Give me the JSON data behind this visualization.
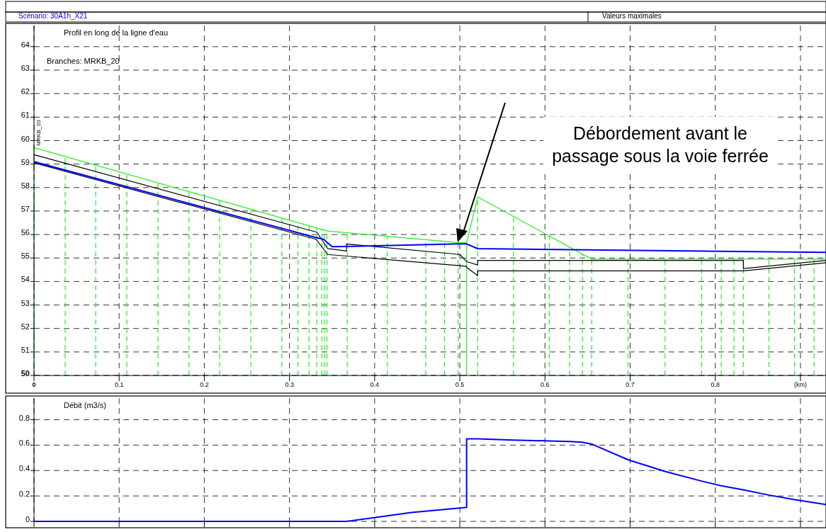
{
  "chart_data": [
    {
      "type": "line",
      "title": "Profil en long de la ligne d'eau",
      "subtitle": "Branches: MRKB_20",
      "annotations": [
        "Scénario: 30A1h_X21",
        "Valeurs maximales",
        "MRKB_20",
        "Débordement avant le\npassage sous la voie ferrée"
      ],
      "series": [
        {
          "color": "#22ee22",
          "x": [
            0,
            0.33,
            0.345,
            0.5,
            0.508,
            0.521,
            0.655,
            0.93
          ],
          "values": [
            59.7,
            56.3,
            56.15,
            55.65,
            55.65,
            57.6,
            54.95,
            54.95
          ]
        },
        {
          "color": "#000000",
          "x": [
            0,
            0.332,
            0.345,
            0.367,
            0.367,
            0.5,
            0.508,
            0.521,
            0.521,
            0.833,
            0.833,
            0.93
          ],
          "values": [
            59.4,
            56.1,
            55.4,
            55.3,
            55.6,
            55.15,
            54.85,
            54.7,
            54.9,
            54.9,
            54.55,
            54.9
          ]
        },
        {
          "color": "#000000",
          "x": [
            0,
            0.331,
            0.345,
            0.508,
            0.508,
            0.521,
            0.521,
            0.833,
            0.93
          ],
          "values": [
            59.05,
            55.8,
            55.15,
            54.65,
            54.6,
            54.25,
            54.45,
            54.45,
            54.8
          ]
        },
        {
          "color": "#0000ff",
          "x": [
            0,
            0.33,
            0.34,
            0.35,
            0.5,
            0.508,
            0.521,
            0.93
          ],
          "values": [
            59.1,
            55.88,
            55.8,
            55.48,
            55.6,
            55.6,
            55.4,
            55.24
          ]
        }
      ],
      "xlim": [
        0,
        0.93
      ],
      "ylim": [
        50,
        64.9
      ],
      "xticks": [
        0,
        0.1,
        0.2,
        0.3,
        0.4,
        0.5,
        0.6,
        0.7,
        0.8,
        {
          "value": 0.9,
          "label": "(km)"
        }
      ],
      "yticks": [
        50,
        51,
        52,
        53,
        54,
        55,
        56,
        57,
        58,
        59,
        60,
        61,
        62,
        63,
        64
      ],
      "grid": true,
      "marker": "none",
      "line_style": "solid",
      "ref_lines": [
        {
          "axis": "x",
          "value": 0,
          "color": "#22ee22",
          "line_style": "dashed"
        },
        {
          "axis": "x",
          "value": 0.0366,
          "color": "#22ee22",
          "line_style": "dashed"
        },
        {
          "axis": "x",
          "value": 0.0725,
          "color": "#22ee22",
          "line_style": "dashed"
        },
        {
          "axis": "x",
          "value": 0.109,
          "color": "#22ee22",
          "line_style": "dashed"
        },
        {
          "axis": "x",
          "value": 0.1456,
          "color": "#22ee22",
          "line_style": "dashed"
        },
        {
          "axis": "x",
          "value": 0.182,
          "color": "#22ee22",
          "line_style": "dashed"
        },
        {
          "axis": "x",
          "value": 0.218,
          "color": "#22ee22",
          "line_style": "dashed"
        },
        {
          "axis": "x",
          "value": 0.2546,
          "color": "#22ee22",
          "line_style": "dashed"
        },
        {
          "axis": "x",
          "value": 0.291,
          "color": "#22ee22",
          "line_style": "dashed"
        },
        {
          "axis": "x",
          "value": 0.31,
          "color": "#22ee22",
          "line_style": "dashed"
        },
        {
          "axis": "x",
          "value": 0.323,
          "color": "#22ee22",
          "line_style": "dashed"
        },
        {
          "axis": "x",
          "value": 0.332,
          "color": "#22ee22",
          "line_style": "dashed"
        },
        {
          "axis": "x",
          "value": 0.338,
          "color": "#22ee22",
          "line_style": "dashed"
        },
        {
          "axis": "x",
          "value": 0.341,
          "color": "#22ee22",
          "line_style": "dashed"
        },
        {
          "axis": "x",
          "value": 0.344,
          "color": "#22ee22",
          "line_style": "dashed"
        },
        {
          "axis": "x",
          "value": 0.3678,
          "color": "#22ee22",
          "line_style": "dashed"
        },
        {
          "axis": "x",
          "value": 0.415,
          "color": "#22ee22",
          "line_style": "dashed"
        },
        {
          "axis": "x",
          "value": 0.46,
          "color": "#22ee22",
          "line_style": "dashed"
        },
        {
          "axis": "x",
          "value": 0.482,
          "color": "#22ee22",
          "line_style": "dashed"
        },
        {
          "axis": "x",
          "value": 0.498,
          "color": "#22ee22",
          "line_style": "dashed"
        },
        {
          "axis": "x",
          "value": 0.508,
          "color": "#22ee22",
          "line_style": "solid"
        },
        {
          "axis": "x",
          "value": 0.521,
          "color": "#22ee22",
          "line_style": "dashed"
        },
        {
          "axis": "x",
          "value": 0.563,
          "color": "#22ee22",
          "line_style": "dashed"
        },
        {
          "axis": "x",
          "value": 0.605,
          "color": "#22ee22",
          "line_style": "dashed"
        },
        {
          "axis": "x",
          "value": 0.629,
          "color": "#22ee22",
          "line_style": "dashed"
        },
        {
          "axis": "x",
          "value": 0.644,
          "color": "#22ee22",
          "line_style": "dashed"
        },
        {
          "axis": "x",
          "value": 0.655,
          "color": "#22ee22",
          "line_style": "dashed"
        },
        {
          "axis": "x",
          "value": 0.6975,
          "color": "#22ee22",
          "line_style": "dashed"
        },
        {
          "axis": "x",
          "value": 0.741,
          "color": "#22ee22",
          "line_style": "dashed"
        },
        {
          "axis": "x",
          "value": 0.784,
          "color": "#22ee22",
          "line_style": "dashed"
        },
        {
          "axis": "x",
          "value": 0.807,
          "color": "#22ee22",
          "line_style": "dashed"
        },
        {
          "axis": "x",
          "value": 0.822,
          "color": "#22ee22",
          "line_style": "dashed"
        },
        {
          "axis": "x",
          "value": 0.833,
          "color": "#22ee22",
          "line_style": "dashed"
        },
        {
          "axis": "x",
          "value": 0.863,
          "color": "#22ee22",
          "line_style": "dashed"
        },
        {
          "axis": "x",
          "value": 0.893,
          "color": "#22ee22",
          "line_style": "dashed"
        },
        {
          "axis": "x",
          "value": 0.916,
          "color": "#22ee22",
          "line_style": "dashed"
        }
      ]
    },
    {
      "type": "line",
      "title": "Débit (m3/s)",
      "series": [
        {
          "color": "#0000ff",
          "x": [
            0,
            0.367,
            0.443,
            0.508,
            0.508,
            0.521,
            0.563,
            0.605,
            0.629,
            0.644,
            0.655,
            0.6975,
            0.741,
            0.784,
            0.807,
            0.833,
            0.863,
            0.893,
            0.93
          ],
          "values": [
            0,
            0,
            0.07,
            0.11,
            0.65,
            0.65,
            0.64,
            0.633,
            0.629,
            0.623,
            0.608,
            0.485,
            0.393,
            0.317,
            0.28,
            0.248,
            0.207,
            0.171,
            0.133
          ]
        }
      ],
      "xlim": [
        0,
        0.93
      ],
      "ylim": [
        0,
        0.97
      ],
      "xticks": [
        0,
        0.1,
        0.2,
        0.3,
        0.4,
        0.5,
        0.6,
        0.7,
        0.8,
        0.9
      ],
      "yticks": [
        0,
        0.2,
        0.4,
        0.6,
        0.8
      ],
      "tick_labels": "y",
      "grid": true,
      "marker": "none",
      "line_style": "solid"
    }
  ]
}
